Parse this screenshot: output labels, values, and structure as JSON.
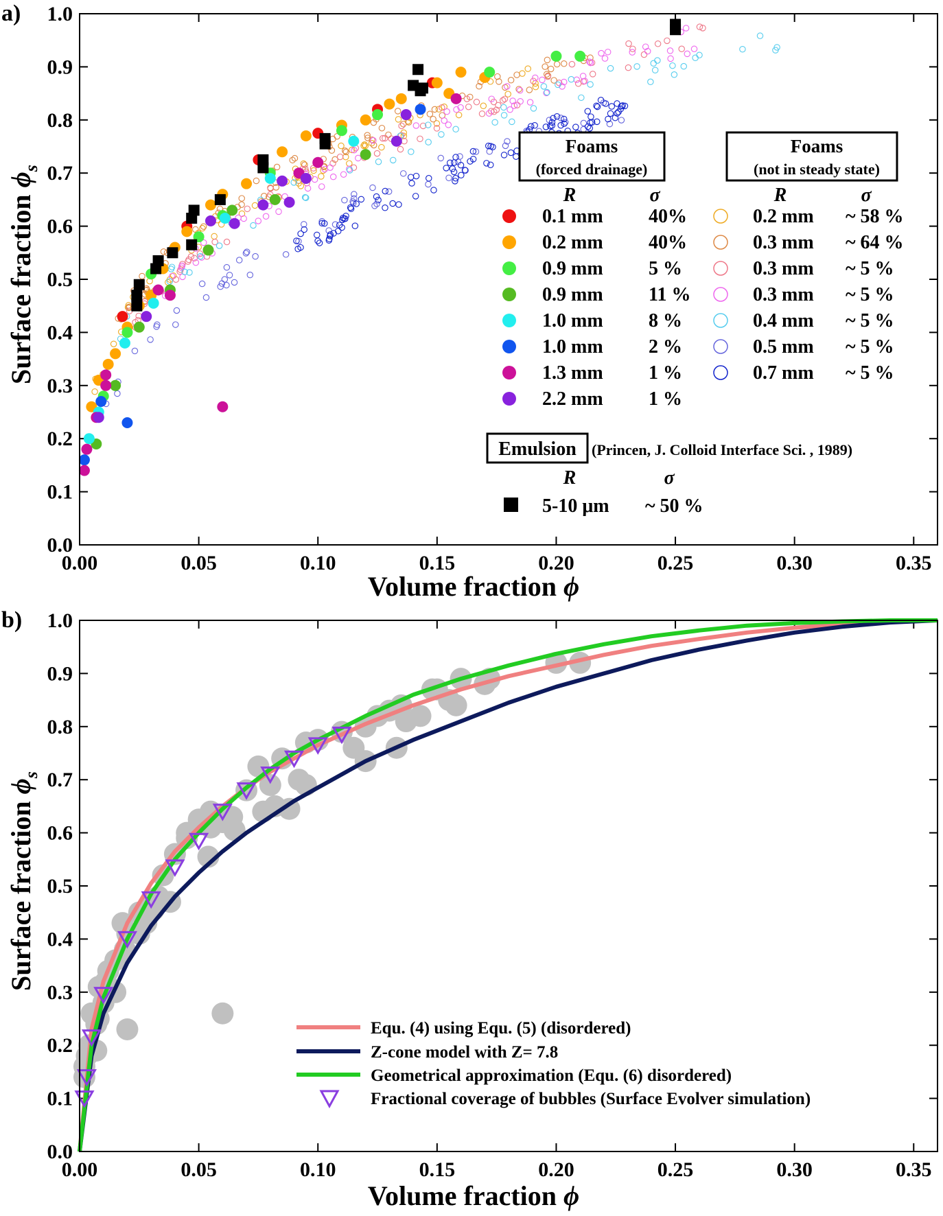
{
  "chart_data": [
    {
      "panel_label": "a)",
      "type": "scatter",
      "xlabel": "Volume fraction",
      "xlabel_symbol": "ϕ",
      "ylabel": "Surface fraction",
      "ylabel_symbol": "ϕ",
      "ylabel_sub": "s",
      "xlim": [
        0,
        0.36
      ],
      "ylim": [
        0,
        1
      ],
      "xticks": [
        0.0,
        0.05,
        0.1,
        0.15,
        0.2,
        0.25,
        0.3,
        0.35
      ],
      "xtick_labels": [
        "0.00",
        "0.05",
        "0.10",
        "0.15",
        "0.20",
        "0.25",
        "0.30",
        "0.35"
      ],
      "yticks": [
        0.0,
        0.1,
        0.2,
        0.3,
        0.4,
        0.5,
        0.6,
        0.7,
        0.8,
        0.9,
        1.0
      ],
      "ytick_labels": [
        "0.0",
        "0.1",
        "0.2",
        "0.3",
        "0.4",
        "0.5",
        "0.6",
        "0.7",
        "0.8",
        "0.9",
        "1.0"
      ],
      "legend": {
        "group1_title": [
          "Foams",
          "(forced drainage)"
        ],
        "group2_title": [
          "Foams",
          "(not in steady state)"
        ],
        "col_R": "R",
        "col_sigma": "σ",
        "group3_title": "Emulsion",
        "group3_ref": "(Princen, J. Colloid Interface Sci. , 1989)"
      },
      "series_filled": [
        {
          "R": "0.1 mm",
          "sigma": "40%",
          "color": "#ee1111",
          "points": [
            [
              0.018,
              0.43
            ],
            [
              0.045,
              0.6
            ],
            [
              0.075,
              0.725
            ],
            [
              0.1,
              0.775
            ],
            [
              0.125,
              0.82
            ],
            [
              0.148,
              0.87
            ]
          ]
        },
        {
          "R": "0.2 mm",
          "sigma": "40%",
          "color": "#ffa500",
          "points": [
            [
              0.005,
              0.26
            ],
            [
              0.008,
              0.31
            ],
            [
              0.012,
              0.34
            ],
            [
              0.015,
              0.36
            ],
            [
              0.02,
              0.41
            ],
            [
              0.025,
              0.45
            ],
            [
              0.03,
              0.47
            ],
            [
              0.035,
              0.52
            ],
            [
              0.04,
              0.56
            ],
            [
              0.045,
              0.59
            ],
            [
              0.055,
              0.64
            ],
            [
              0.06,
              0.66
            ],
            [
              0.07,
              0.68
            ],
            [
              0.085,
              0.74
            ],
            [
              0.095,
              0.77
            ],
            [
              0.11,
              0.79
            ],
            [
              0.12,
              0.8
            ],
            [
              0.13,
              0.83
            ],
            [
              0.135,
              0.84
            ],
            [
              0.15,
              0.87
            ],
            [
              0.155,
              0.85
            ],
            [
              0.16,
              0.89
            ],
            [
              0.17,
              0.88
            ]
          ]
        },
        {
          "R": "0.9 mm",
          "sigma": "5 %",
          "color": "#44ee44",
          "points": [
            [
              0.01,
              0.28
            ],
            [
              0.02,
              0.4
            ],
            [
              0.03,
              0.51
            ],
            [
              0.05,
              0.58
            ],
            [
              0.06,
              0.62
            ],
            [
              0.08,
              0.7
            ],
            [
              0.11,
              0.78
            ],
            [
              0.125,
              0.81
            ],
            [
              0.172,
              0.89
            ],
            [
              0.2,
              0.92
            ],
            [
              0.21,
              0.92
            ]
          ]
        },
        {
          "R": "0.9 mm",
          "sigma": "11 %",
          "color": "#55bb22",
          "points": [
            [
              0.007,
              0.19
            ],
            [
              0.015,
              0.3
            ],
            [
              0.025,
              0.41
            ],
            [
              0.038,
              0.48
            ],
            [
              0.054,
              0.555
            ],
            [
              0.064,
              0.63
            ],
            [
              0.082,
              0.65
            ],
            [
              0.12,
              0.735
            ]
          ]
        },
        {
          "R": "1.0 mm",
          "sigma": "8 %",
          "color": "#22eeee",
          "points": [
            [
              0.004,
              0.2
            ],
            [
              0.008,
              0.25
            ],
            [
              0.019,
              0.38
            ],
            [
              0.031,
              0.455
            ],
            [
              0.061,
              0.615
            ],
            [
              0.08,
              0.69
            ],
            [
              0.115,
              0.76
            ]
          ]
        },
        {
          "R": "1.0 mm",
          "sigma": "2 %",
          "color": "#1155ee",
          "points": [
            [
              0.002,
              0.16
            ],
            [
              0.009,
              0.27
            ],
            [
              0.02,
              0.23
            ],
            [
              0.143,
              0.82
            ]
          ]
        },
        {
          "R": "1.3 mm",
          "sigma": "1 %",
          "color": "#cc1199",
          "points": [
            [
              0.002,
              0.14
            ],
            [
              0.003,
              0.18
            ],
            [
              0.007,
              0.24
            ],
            [
              0.011,
              0.32
            ],
            [
              0.011,
              0.3
            ],
            [
              0.033,
              0.48
            ],
            [
              0.038,
              0.47
            ],
            [
              0.06,
              0.26
            ],
            [
              0.092,
              0.7
            ],
            [
              0.1,
              0.72
            ],
            [
              0.158,
              0.84
            ]
          ]
        },
        {
          "R": "2.2 mm",
          "sigma": "1 %",
          "color": "#8822dd",
          "points": [
            [
              0.008,
              0.24
            ],
            [
              0.028,
              0.43
            ],
            [
              0.055,
              0.61
            ],
            [
              0.065,
              0.605
            ],
            [
              0.077,
              0.64
            ],
            [
              0.085,
              0.685
            ],
            [
              0.088,
              0.645
            ],
            [
              0.095,
              0.69
            ],
            [
              0.133,
              0.76
            ],
            [
              0.137,
              0.81
            ]
          ]
        }
      ],
      "series_open": [
        {
          "R": "0.2 mm",
          "sigma": "~ 58 %",
          "color": "#eeaa22"
        },
        {
          "R": "0.3 mm",
          "sigma": "~ 64 %",
          "color": "#dd8844"
        },
        {
          "R": "0.3 mm",
          "sigma": "~ 5 %",
          "color": "#ee7788"
        },
        {
          "R": "0.3 mm",
          "sigma": "~ 5 %",
          "color": "#ee66ee"
        },
        {
          "R": "0.4 mm",
          "sigma": "~ 5 %",
          "color": "#55ccee"
        },
        {
          "R": "0.5 mm",
          "sigma": "~ 5 %",
          "color": "#6666dd"
        },
        {
          "R": "0.7 mm",
          "sigma": "~ 5 %",
          "color": "#1122cc"
        }
      ],
      "series_emulsion": {
        "R": "5-10 μm",
        "sigma": "~ 50 %",
        "color": "#000000",
        "points": [
          [
            0.024,
            0.45
          ],
          [
            0.024,
            0.47
          ],
          [
            0.025,
            0.49
          ],
          [
            0.032,
            0.52
          ],
          [
            0.033,
            0.535
          ],
          [
            0.039,
            0.55
          ],
          [
            0.047,
            0.565
          ],
          [
            0.047,
            0.615
          ],
          [
            0.048,
            0.63
          ],
          [
            0.059,
            0.65
          ],
          [
            0.077,
            0.71
          ],
          [
            0.077,
            0.725
          ],
          [
            0.103,
            0.755
          ],
          [
            0.103,
            0.765
          ],
          [
            0.14,
            0.865
          ],
          [
            0.142,
            0.895
          ],
          [
            0.143,
            0.855
          ],
          [
            0.144,
            0.86
          ],
          [
            0.25,
            0.97
          ],
          [
            0.25,
            0.98
          ]
        ]
      }
    },
    {
      "panel_label": "b)",
      "type": "line",
      "xlabel": "Volume fraction",
      "xlabel_symbol": "ϕ",
      "ylabel": "Surface fraction",
      "ylabel_symbol": "ϕ",
      "ylabel_sub": "s",
      "xlim": [
        0,
        0.36
      ],
      "ylim": [
        0,
        1
      ],
      "xticks": [
        0.0,
        0.05,
        0.1,
        0.15,
        0.2,
        0.25,
        0.3,
        0.35
      ],
      "xtick_labels": [
        "0.00",
        "0.05",
        "0.10",
        "0.15",
        "0.20",
        "0.25",
        "0.30",
        "0.35"
      ],
      "yticks": [
        0.0,
        0.1,
        0.2,
        0.3,
        0.4,
        0.5,
        0.6,
        0.7,
        0.8,
        0.9,
        1.0
      ],
      "ytick_labels": [
        "0.0",
        "0.1",
        "0.2",
        "0.3",
        "0.4",
        "0.5",
        "0.6",
        "0.7",
        "0.8",
        "0.9",
        "1.0"
      ],
      "series": [
        {
          "name": "Equ. (4) using Equ. (5) (disordered)",
          "color": "#f08080",
          "x": [
            0,
            0.005,
            0.01,
            0.02,
            0.03,
            0.04,
            0.05,
            0.06,
            0.07,
            0.08,
            0.09,
            0.1,
            0.12,
            0.14,
            0.16,
            0.18,
            0.2,
            0.22,
            0.24,
            0.26,
            0.28,
            0.3,
            0.32,
            0.34,
            0.36
          ],
          "y": [
            0,
            0.23,
            0.32,
            0.43,
            0.505,
            0.565,
            0.61,
            0.65,
            0.685,
            0.715,
            0.74,
            0.765,
            0.805,
            0.84,
            0.87,
            0.895,
            0.915,
            0.935,
            0.952,
            0.965,
            0.977,
            0.986,
            0.993,
            0.998,
            1.0
          ]
        },
        {
          "name": "Z-cone model with Z= 7.8",
          "color": "#0d1a5c",
          "x": [
            0,
            0.005,
            0.01,
            0.02,
            0.03,
            0.04,
            0.05,
            0.06,
            0.07,
            0.08,
            0.09,
            0.1,
            0.12,
            0.14,
            0.16,
            0.18,
            0.2,
            0.22,
            0.24,
            0.26,
            0.28,
            0.3,
            0.32,
            0.34,
            0.36
          ],
          "y": [
            0,
            0.18,
            0.26,
            0.355,
            0.425,
            0.48,
            0.525,
            0.565,
            0.6,
            0.63,
            0.66,
            0.685,
            0.735,
            0.775,
            0.81,
            0.845,
            0.875,
            0.9,
            0.925,
            0.945,
            0.962,
            0.977,
            0.988,
            0.996,
            1.0
          ]
        },
        {
          "name": "Geometrical approximation (Equ. (6) disordered)",
          "color": "#22cc22",
          "x": [
            0,
            0.005,
            0.01,
            0.02,
            0.03,
            0.04,
            0.05,
            0.06,
            0.07,
            0.08,
            0.09,
            0.1,
            0.12,
            0.14,
            0.16,
            0.18,
            0.2,
            0.22,
            0.24,
            0.26,
            0.28,
            0.3,
            0.32,
            0.34,
            0.36
          ],
          "y": [
            0,
            0.2,
            0.29,
            0.4,
            0.485,
            0.55,
            0.6,
            0.645,
            0.685,
            0.72,
            0.75,
            0.775,
            0.82,
            0.86,
            0.89,
            0.915,
            0.937,
            0.955,
            0.97,
            0.981,
            0.99,
            0.995,
            0.998,
            1.0,
            1.0
          ]
        }
      ],
      "simulation": {
        "name": "Fractional coverage of bubbles (Surface Evolver simulation)",
        "color": "#8a3ee0",
        "points": [
          [
            0.002,
            0.1
          ],
          [
            0.003,
            0.14
          ],
          [
            0.005,
            0.215
          ],
          [
            0.01,
            0.295
          ],
          [
            0.02,
            0.4
          ],
          [
            0.03,
            0.475
          ],
          [
            0.04,
            0.535
          ],
          [
            0.05,
            0.585
          ],
          [
            0.06,
            0.64
          ],
          [
            0.07,
            0.68
          ],
          [
            0.08,
            0.71
          ],
          [
            0.09,
            0.74
          ],
          [
            0.1,
            0.765
          ],
          [
            0.11,
            0.785
          ]
        ]
      },
      "background_points": {
        "color": "#c0c0c0",
        "points": [
          [
            0.002,
            0.14
          ],
          [
            0.002,
            0.16
          ],
          [
            0.003,
            0.18
          ],
          [
            0.004,
            0.2
          ],
          [
            0.005,
            0.26
          ],
          [
            0.007,
            0.19
          ],
          [
            0.007,
            0.24
          ],
          [
            0.008,
            0.25
          ],
          [
            0.008,
            0.31
          ],
          [
            0.01,
            0.28
          ],
          [
            0.011,
            0.32
          ],
          [
            0.012,
            0.34
          ],
          [
            0.015,
            0.3
          ],
          [
            0.015,
            0.36
          ],
          [
            0.018,
            0.43
          ],
          [
            0.019,
            0.38
          ],
          [
            0.02,
            0.23
          ],
          [
            0.02,
            0.41
          ],
          [
            0.025,
            0.41
          ],
          [
            0.025,
            0.45
          ],
          [
            0.028,
            0.43
          ],
          [
            0.03,
            0.47
          ],
          [
            0.031,
            0.455
          ],
          [
            0.033,
            0.48
          ],
          [
            0.035,
            0.52
          ],
          [
            0.038,
            0.47
          ],
          [
            0.04,
            0.56
          ],
          [
            0.045,
            0.59
          ],
          [
            0.045,
            0.6
          ],
          [
            0.05,
            0.625
          ],
          [
            0.054,
            0.555
          ],
          [
            0.055,
            0.61
          ],
          [
            0.055,
            0.64
          ],
          [
            0.06,
            0.26
          ],
          [
            0.06,
            0.62
          ],
          [
            0.064,
            0.63
          ],
          [
            0.065,
            0.605
          ],
          [
            0.07,
            0.68
          ],
          [
            0.075,
            0.725
          ],
          [
            0.077,
            0.64
          ],
          [
            0.08,
            0.69
          ],
          [
            0.082,
            0.65
          ],
          [
            0.085,
            0.74
          ],
          [
            0.088,
            0.645
          ],
          [
            0.092,
            0.7
          ],
          [
            0.095,
            0.69
          ],
          [
            0.095,
            0.77
          ],
          [
            0.1,
            0.775
          ],
          [
            0.11,
            0.79
          ],
          [
            0.115,
            0.76
          ],
          [
            0.12,
            0.735
          ],
          [
            0.12,
            0.8
          ],
          [
            0.125,
            0.82
          ],
          [
            0.13,
            0.83
          ],
          [
            0.133,
            0.76
          ],
          [
            0.135,
            0.84
          ],
          [
            0.137,
            0.81
          ],
          [
            0.143,
            0.82
          ],
          [
            0.148,
            0.87
          ],
          [
            0.15,
            0.87
          ],
          [
            0.155,
            0.85
          ],
          [
            0.158,
            0.84
          ],
          [
            0.16,
            0.89
          ],
          [
            0.17,
            0.88
          ],
          [
            0.172,
            0.89
          ],
          [
            0.2,
            0.92
          ],
          [
            0.21,
            0.92
          ]
        ]
      }
    }
  ]
}
